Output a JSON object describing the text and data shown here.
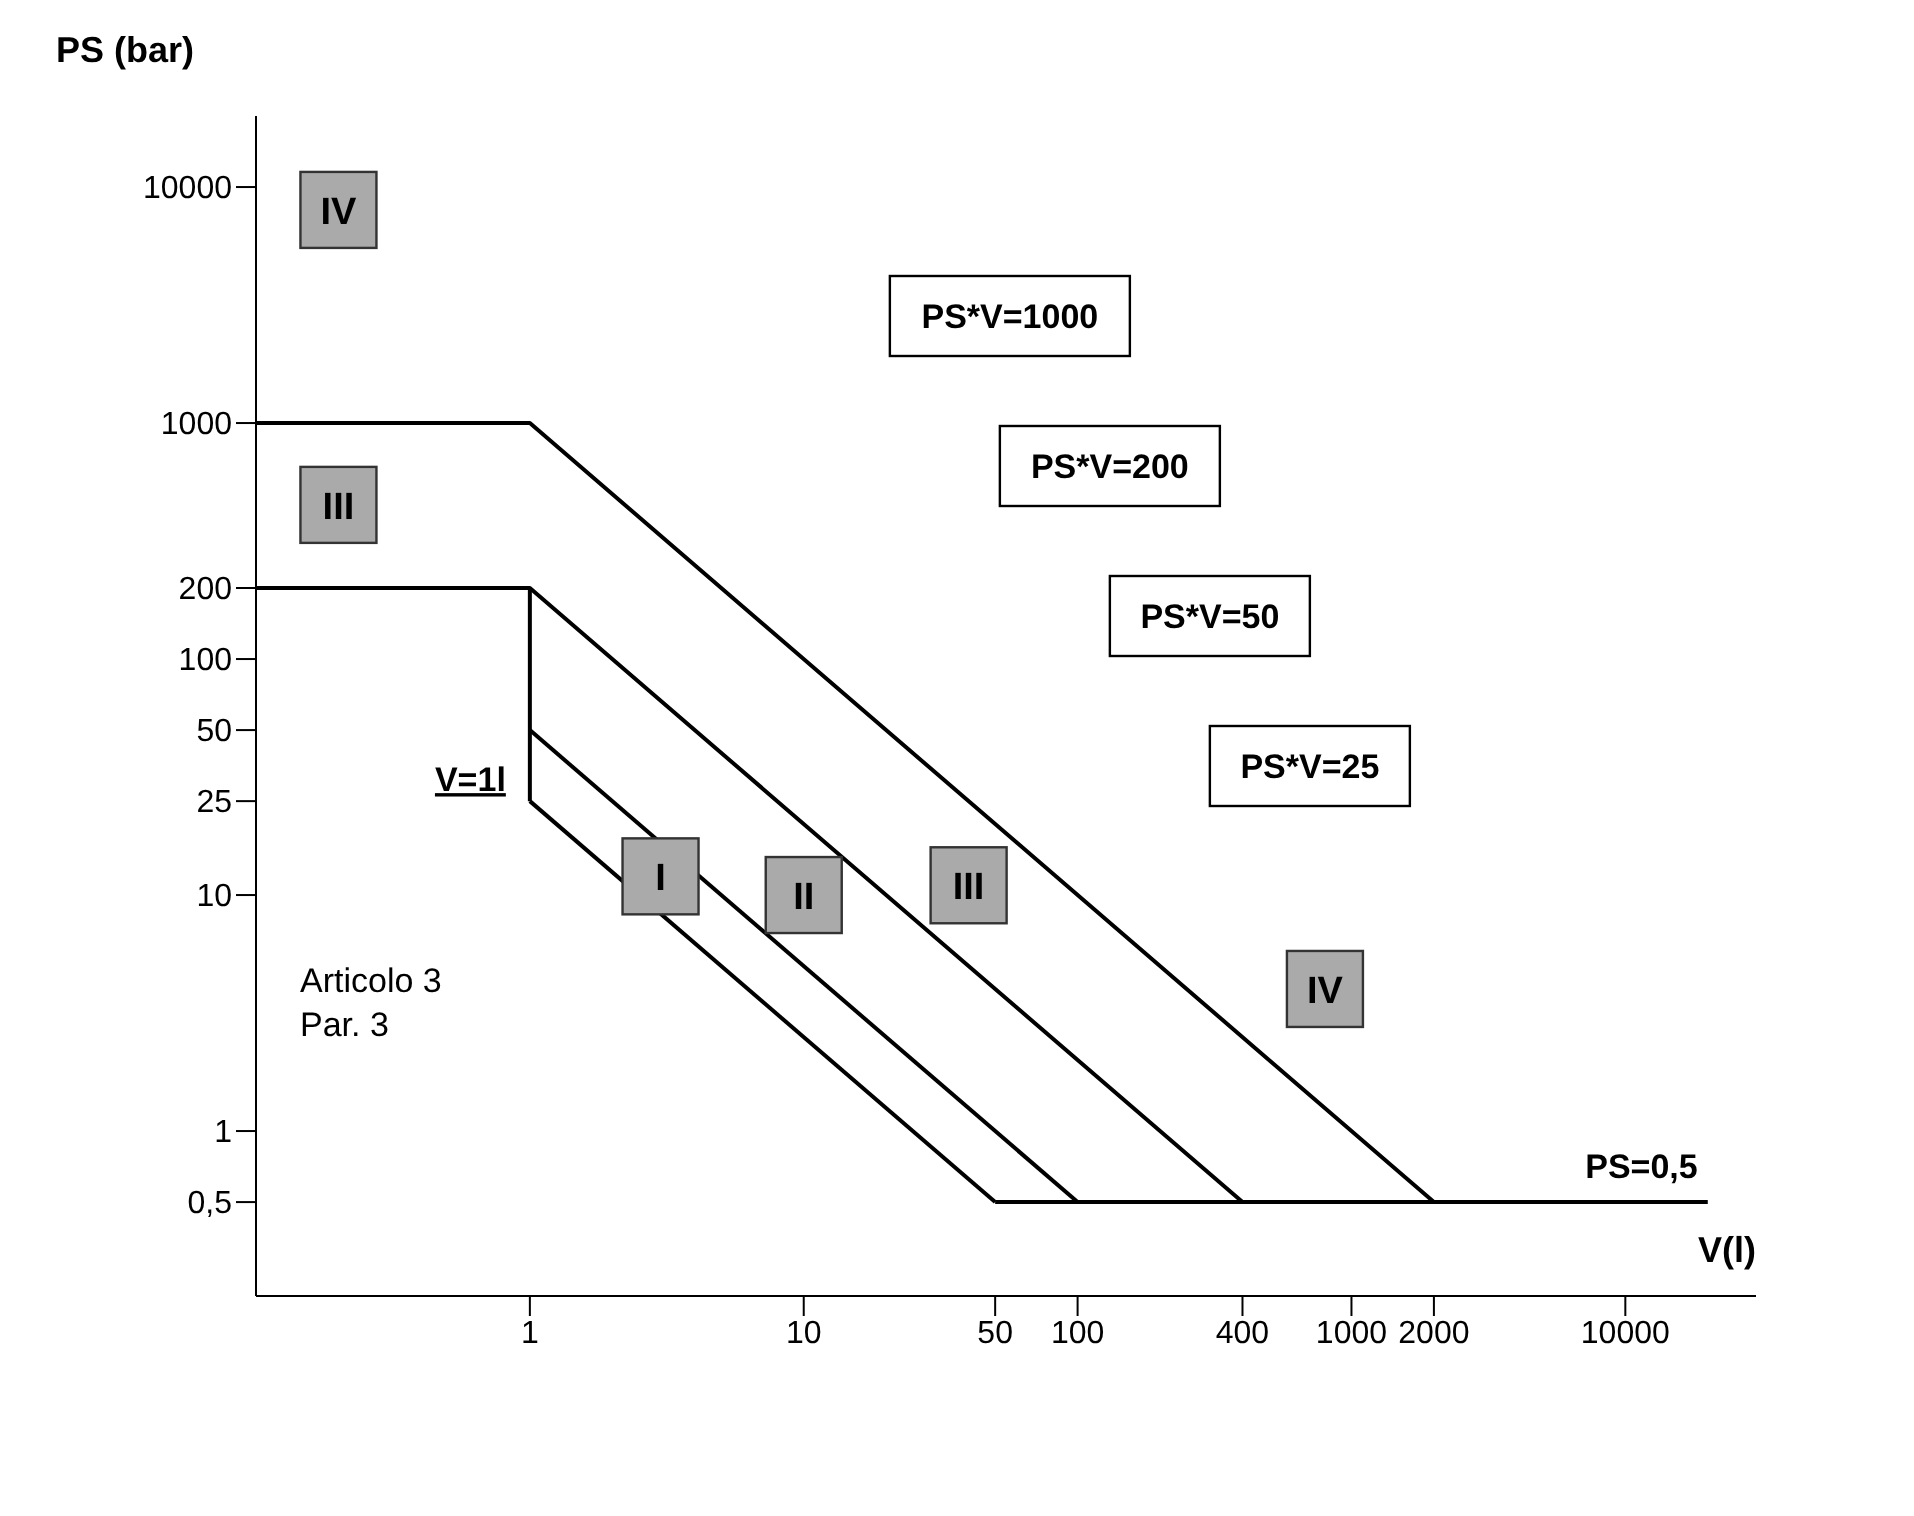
{
  "chart_data": {
    "type": "line",
    "ylabel": "PS (bar)",
    "xlabel": "V(l)",
    "log": "xy",
    "marker": "none",
    "line_style": "solid",
    "xlim": [
      0.1,
      30000
    ],
    "xticks": [
      1,
      10,
      50,
      100,
      400,
      1000,
      2000,
      10000
    ],
    "ylim": [
      0.2,
      20000
    ],
    "yticks": [
      {
        "value": 0.5,
        "label": "0,5"
      },
      1,
      10,
      25,
      50,
      100,
      200,
      1000,
      10000
    ],
    "series": [
      {
        "name": "PS*V=1000",
        "color": "#000000",
        "x": [
          0.1,
          1,
          2000
        ],
        "values": [
          1000,
          1000,
          0.5
        ]
      },
      {
        "name": "PS*V=200",
        "color": "#000000",
        "x": [
          0.1,
          1,
          400
        ],
        "values": [
          200,
          200,
          0.5
        ]
      },
      {
        "name": "PS*V=50",
        "color": "#000000",
        "x": [
          1,
          100
        ],
        "values": [
          50,
          0.5
        ]
      },
      {
        "name": "PS*V=25",
        "color": "#000000",
        "x": [
          1,
          50
        ],
        "values": [
          25,
          0.5
        ]
      },
      {
        "name": "V=1l",
        "color": "#000000",
        "x": [
          1,
          1
        ],
        "values": [
          200,
          25
        ]
      },
      {
        "name": "PS=0,5",
        "color": "#000000",
        "x": [
          50,
          20000
        ],
        "values": [
          0.5,
          0.5
        ]
      }
    ],
    "annotations": [
      {
        "text": "IV",
        "x": 0.2,
        "y": 8000
      },
      {
        "text": "III",
        "x": 0.2,
        "y": 450
      },
      {
        "text": "I",
        "x": 3,
        "y": 12
      },
      {
        "text": "II",
        "x": 10,
        "y": 10
      },
      {
        "text": "III",
        "x": 40,
        "y": 11
      },
      {
        "text": "IV",
        "x": 800,
        "y": 4
      },
      "Articolo 3\nPar. 3"
    ]
  }
}
